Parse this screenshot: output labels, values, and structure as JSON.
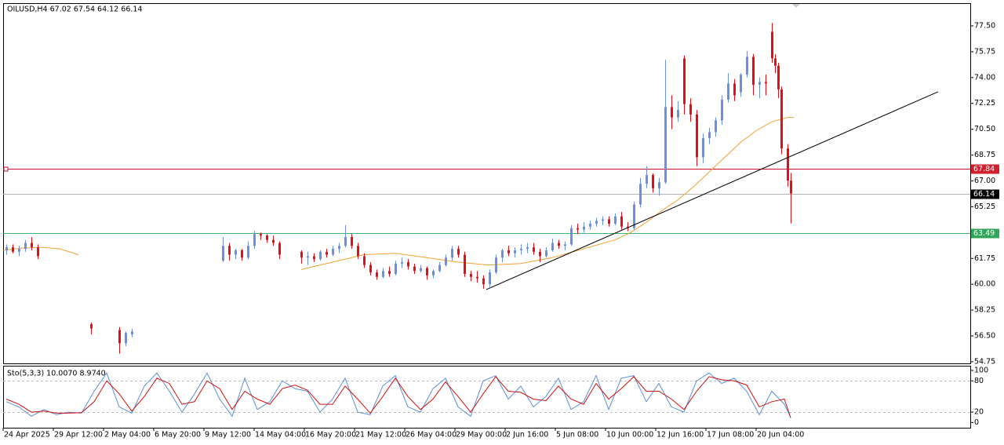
{
  "chart_data": {
    "type": "candlestick",
    "title": "OILUSD,H4  67.02 67.54 64.12 66.14",
    "up_color": "#6a8fdc",
    "down_color": "#e0101a",
    "xlim": [
      0,
      308.25
    ],
    "xticks": [
      {
        "value": 0,
        "label": "24 Apr 2025"
      },
      {
        "value": 16,
        "label": "29 Apr 12:00"
      },
      {
        "value": 32,
        "label": "2 May 04:00"
      },
      {
        "value": 48,
        "label": "6 May 20:00"
      },
      {
        "value": 64,
        "label": "9 May 12:00"
      },
      {
        "value": 80,
        "label": "14 May 04:00"
      },
      {
        "value": 96,
        "label": "16 May 20:00"
      },
      {
        "value": 112,
        "label": "21 May 12:00"
      },
      {
        "value": 128,
        "label": "26 May 04:00"
      },
      {
        "value": 144,
        "label": "29 May 00:00"
      },
      {
        "value": 160,
        "label": "2 Jun 16:00"
      },
      {
        "value": 176,
        "label": "5 Jun 08:00"
      },
      {
        "value": 192,
        "label": "10 Jun 00:00"
      },
      {
        "value": 208,
        "label": "12 Jun 16:00"
      },
      {
        "value": 224,
        "label": "17 Jun 08:00"
      },
      {
        "value": 240,
        "label": "20 Jun 04:00"
      }
    ],
    "ylim": [
      54.64,
      79.04
    ],
    "yticks": [
      54.75,
      {
        "value": 56.5,
        "label": "56.50"
      },
      58.25,
      {
        "value": 60,
        "label": "60.00"
      },
      61.75,
      {
        "value": 63.5,
        "label": "63.50"
      },
      65.25,
      {
        "value": 67,
        "label": "67.00"
      },
      68.75,
      {
        "value": 70.5,
        "label": "70.50"
      },
      72.25,
      {
        "value": 74,
        "label": "74.00"
      },
      75.75,
      {
        "value": 77.5,
        "label": "77.50"
      }
    ],
    "levels": [
      {
        "value": 67.84,
        "color": "#c8102e",
        "box_color": "#d0202e"
      },
      {
        "value": 66.14,
        "color": "#b4b4b4",
        "box_color": "#000000"
      },
      {
        "value": 63.49,
        "color": "#3cb371",
        "box_color": "#2fa65a"
      }
    ],
    "candles": [
      {
        "x": 1,
        "open": 62.3,
        "high": 62.7,
        "low": 62.0,
        "close": 62.5
      },
      {
        "x": 3,
        "open": 62.5,
        "high": 62.7,
        "low": 62.1,
        "close": 62.2
      },
      {
        "x": 5,
        "open": 62.2,
        "high": 62.6,
        "low": 61.9,
        "close": 62.4
      },
      {
        "x": 7,
        "open": 62.4,
        "high": 63.0,
        "low": 62.2,
        "close": 62.8
      },
      {
        "x": 9,
        "open": 62.8,
        "high": 63.2,
        "low": 62.3,
        "close": 62.5
      },
      {
        "x": 11,
        "open": 62.5,
        "high": 62.7,
        "low": 61.7,
        "close": 61.9
      },
      {
        "x": 28,
        "open": 57.3,
        "high": 57.4,
        "low": 56.6,
        "close": 57.0
      },
      {
        "x": 37,
        "open": 56.9,
        "high": 57.1,
        "low": 55.3,
        "close": 56.0
      },
      {
        "x": 39,
        "open": 56.0,
        "high": 56.8,
        "low": 55.8,
        "close": 56.7
      },
      {
        "x": 41,
        "open": 56.6,
        "high": 57.0,
        "low": 56.4,
        "close": 56.8
      },
      {
        "x": 70,
        "open": 61.6,
        "high": 63.2,
        "low": 61.5,
        "close": 62.6
      },
      {
        "x": 72,
        "open": 62.6,
        "high": 62.8,
        "low": 61.6,
        "close": 62.0
      },
      {
        "x": 74,
        "open": 62.0,
        "high": 62.4,
        "low": 61.7,
        "close": 62.3
      },
      {
        "x": 76,
        "open": 62.3,
        "high": 62.4,
        "low": 61.6,
        "close": 61.8
      },
      {
        "x": 78,
        "open": 61.8,
        "high": 62.9,
        "low": 61.7,
        "close": 62.6
      },
      {
        "x": 80,
        "open": 62.6,
        "high": 63.6,
        "low": 62.4,
        "close": 63.4
      },
      {
        "x": 82,
        "open": 63.4,
        "high": 63.5,
        "low": 63.0,
        "close": 63.3
      },
      {
        "x": 84,
        "open": 63.3,
        "high": 63.4,
        "low": 62.8,
        "close": 63.0
      },
      {
        "x": 86,
        "open": 63.0,
        "high": 63.3,
        "low": 62.6,
        "close": 62.8
      },
      {
        "x": 88,
        "open": 62.8,
        "high": 62.9,
        "low": 61.7,
        "close": 62.0
      },
      {
        "x": 95,
        "open": 62.2,
        "high": 62.3,
        "low": 61.4,
        "close": 61.8
      },
      {
        "x": 97,
        "open": 61.8,
        "high": 62.2,
        "low": 61.3,
        "close": 61.9
      },
      {
        "x": 99,
        "open": 61.9,
        "high": 62.1,
        "low": 61.5,
        "close": 61.7
      },
      {
        "x": 101,
        "open": 61.7,
        "high": 62.3,
        "low": 61.6,
        "close": 62.2
      },
      {
        "x": 103,
        "open": 62.2,
        "high": 62.4,
        "low": 61.8,
        "close": 62.0
      },
      {
        "x": 105,
        "open": 62.0,
        "high": 62.6,
        "low": 61.9,
        "close": 62.4
      },
      {
        "x": 107,
        "open": 62.4,
        "high": 62.8,
        "low": 62.1,
        "close": 62.6
      },
      {
        "x": 109,
        "open": 62.6,
        "high": 64.0,
        "low": 62.5,
        "close": 63.2
      },
      {
        "x": 111,
        "open": 63.2,
        "high": 63.4,
        "low": 62.4,
        "close": 62.6
      },
      {
        "x": 113,
        "open": 62.6,
        "high": 62.8,
        "low": 61.7,
        "close": 61.9
      },
      {
        "x": 115,
        "open": 61.9,
        "high": 62.1,
        "low": 61.1,
        "close": 61.3
      },
      {
        "x": 117,
        "open": 61.3,
        "high": 61.5,
        "low": 60.6,
        "close": 60.8
      },
      {
        "x": 119,
        "open": 60.8,
        "high": 61.0,
        "low": 60.3,
        "close": 60.5
      },
      {
        "x": 121,
        "open": 60.5,
        "high": 61.1,
        "low": 60.4,
        "close": 60.9
      },
      {
        "x": 123,
        "open": 60.9,
        "high": 61.2,
        "low": 60.5,
        "close": 60.7
      },
      {
        "x": 125,
        "open": 60.7,
        "high": 61.6,
        "low": 60.6,
        "close": 61.4
      },
      {
        "x": 127,
        "open": 61.4,
        "high": 61.8,
        "low": 61.1,
        "close": 61.5
      },
      {
        "x": 129,
        "open": 61.5,
        "high": 61.7,
        "low": 61.0,
        "close": 61.2
      },
      {
        "x": 131,
        "open": 61.2,
        "high": 61.4,
        "low": 60.7,
        "close": 60.9
      },
      {
        "x": 133,
        "open": 60.9,
        "high": 61.3,
        "low": 60.8,
        "close": 61.1
      },
      {
        "x": 135,
        "open": 61.1,
        "high": 61.2,
        "low": 60.3,
        "close": 60.6
      },
      {
        "x": 137,
        "open": 60.6,
        "high": 61.0,
        "low": 60.4,
        "close": 60.9
      },
      {
        "x": 139,
        "open": 60.9,
        "high": 61.5,
        "low": 60.8,
        "close": 61.3
      },
      {
        "x": 141,
        "open": 61.3,
        "high": 62.0,
        "low": 61.2,
        "close": 61.8
      },
      {
        "x": 143,
        "open": 61.8,
        "high": 62.6,
        "low": 61.6,
        "close": 62.4
      },
      {
        "x": 145,
        "open": 62.4,
        "high": 62.6,
        "low": 61.8,
        "close": 62.0
      },
      {
        "x": 147,
        "open": 62.0,
        "high": 62.2,
        "low": 60.5,
        "close": 60.7
      },
      {
        "x": 149,
        "open": 60.7,
        "high": 60.9,
        "low": 60.2,
        "close": 60.5
      },
      {
        "x": 151,
        "open": 60.5,
        "high": 60.9,
        "low": 60.1,
        "close": 60.4
      },
      {
        "x": 153,
        "open": 60.4,
        "high": 60.6,
        "low": 59.7,
        "close": 60.0
      },
      {
        "x": 155,
        "open": 60.0,
        "high": 61.0,
        "low": 59.8,
        "close": 60.8
      },
      {
        "x": 157,
        "open": 60.8,
        "high": 62.0,
        "low": 60.7,
        "close": 61.8
      },
      {
        "x": 159,
        "open": 61.8,
        "high": 62.4,
        "low": 61.5,
        "close": 62.3
      },
      {
        "x": 161,
        "open": 62.3,
        "high": 62.6,
        "low": 61.9,
        "close": 62.1
      },
      {
        "x": 163,
        "open": 62.1,
        "high": 62.5,
        "low": 61.8,
        "close": 62.3
      },
      {
        "x": 165,
        "open": 62.3,
        "high": 62.7,
        "low": 62.0,
        "close": 62.4
      },
      {
        "x": 167,
        "open": 62.4,
        "high": 62.8,
        "low": 62.1,
        "close": 62.5
      },
      {
        "x": 169,
        "open": 62.5,
        "high": 62.8,
        "low": 62.0,
        "close": 62.2
      },
      {
        "x": 171,
        "open": 62.2,
        "high": 62.4,
        "low": 61.5,
        "close": 61.9
      },
      {
        "x": 173,
        "open": 61.9,
        "high": 62.5,
        "low": 61.8,
        "close": 62.3
      },
      {
        "x": 175,
        "open": 62.3,
        "high": 63.1,
        "low": 62.2,
        "close": 62.8
      },
      {
        "x": 177,
        "open": 62.8,
        "high": 63.0,
        "low": 62.4,
        "close": 62.6
      },
      {
        "x": 179,
        "open": 62.6,
        "high": 62.9,
        "low": 62.3,
        "close": 62.7
      },
      {
        "x": 181,
        "open": 62.7,
        "high": 64.0,
        "low": 62.6,
        "close": 63.8
      },
      {
        "x": 183,
        "open": 63.8,
        "high": 64.1,
        "low": 63.4,
        "close": 63.7
      },
      {
        "x": 185,
        "open": 63.7,
        "high": 64.2,
        "low": 63.5,
        "close": 63.9
      },
      {
        "x": 187,
        "open": 63.9,
        "high": 64.3,
        "low": 63.7,
        "close": 64.1
      },
      {
        "x": 189,
        "open": 64.1,
        "high": 64.5,
        "low": 63.9,
        "close": 64.3
      },
      {
        "x": 191,
        "open": 64.3,
        "high": 64.6,
        "low": 64.0,
        "close": 64.4
      },
      {
        "x": 193,
        "open": 64.4,
        "high": 64.6,
        "low": 63.9,
        "close": 64.1
      },
      {
        "x": 195,
        "open": 64.1,
        "high": 64.8,
        "low": 64.0,
        "close": 64.6
      },
      {
        "x": 197,
        "open": 64.6,
        "high": 64.9,
        "low": 63.7,
        "close": 63.9
      },
      {
        "x": 199,
        "open": 63.9,
        "high": 64.2,
        "low": 63.6,
        "close": 63.8
      },
      {
        "x": 201,
        "open": 63.8,
        "high": 65.6,
        "low": 63.7,
        "close": 65.4
      },
      {
        "x": 203,
        "open": 65.4,
        "high": 67.2,
        "low": 65.2,
        "close": 66.8
      },
      {
        "x": 205,
        "open": 66.8,
        "high": 68.0,
        "low": 66.5,
        "close": 67.4
      },
      {
        "x": 207,
        "open": 67.4,
        "high": 67.5,
        "low": 66.2,
        "close": 66.5
      },
      {
        "x": 209,
        "open": 66.5,
        "high": 67.2,
        "low": 66.0,
        "close": 66.9
      },
      {
        "x": 211,
        "open": 66.9,
        "high": 75.2,
        "low": 66.8,
        "close": 72.0
      },
      {
        "x": 213,
        "open": 72.0,
        "high": 72.8,
        "low": 70.5,
        "close": 71.3
      },
      {
        "x": 215,
        "open": 71.3,
        "high": 72.4,
        "low": 71.0,
        "close": 71.8
      },
      {
        "x": 217,
        "open": 75.3,
        "high": 75.5,
        "low": 71.5,
        "close": 72.2
      },
      {
        "x": 219,
        "open": 72.2,
        "high": 72.6,
        "low": 71.0,
        "close": 71.5
      },
      {
        "x": 221,
        "open": 71.5,
        "high": 71.8,
        "low": 68.0,
        "close": 68.6
      },
      {
        "x": 223,
        "open": 68.6,
        "high": 70.2,
        "low": 68.2,
        "close": 69.9
      },
      {
        "x": 225,
        "open": 69.9,
        "high": 70.6,
        "low": 69.5,
        "close": 70.3
      },
      {
        "x": 227,
        "open": 70.3,
        "high": 71.3,
        "low": 70.0,
        "close": 71.1
      },
      {
        "x": 229,
        "open": 71.1,
        "high": 72.8,
        "low": 70.8,
        "close": 72.5
      },
      {
        "x": 231,
        "open": 72.5,
        "high": 74.3,
        "low": 72.3,
        "close": 73.6
      },
      {
        "x": 233,
        "open": 73.6,
        "high": 73.9,
        "low": 72.4,
        "close": 72.8
      },
      {
        "x": 235,
        "open": 73.0,
        "high": 74.3,
        "low": 72.7,
        "close": 74.2
      },
      {
        "x": 237,
        "open": 74.2,
        "high": 75.8,
        "low": 74.0,
        "close": 75.4
      },
      {
        "x": 239,
        "open": 75.4,
        "high": 75.6,
        "low": 72.8,
        "close": 73.5
      },
      {
        "x": 241,
        "open": 73.5,
        "high": 74.0,
        "low": 72.6,
        "close": 73.7
      },
      {
        "x": 243,
        "open": 73.7,
        "high": 74.2,
        "low": 72.8,
        "close": 73.6
      },
      {
        "x": 245,
        "open": 77.1,
        "high": 77.7,
        "low": 75.0,
        "close": 75.3
      },
      {
        "x": 246,
        "open": 75.3,
        "high": 75.6,
        "low": 74.3,
        "close": 74.8
      },
      {
        "x": 247,
        "open": 74.8,
        "high": 75.0,
        "low": 72.6,
        "close": 73.2
      },
      {
        "x": 248,
        "open": 73.2,
        "high": 73.4,
        "low": 68.8,
        "close": 69.2
      },
      {
        "x": 250,
        "open": 69.2,
        "high": 69.5,
        "low": 66.6,
        "close": 67.02
      },
      {
        "x": 251,
        "open": 67.02,
        "high": 67.54,
        "low": 64.12,
        "close": 66.14
      }
    ],
    "ma": {
      "color": "#f0a030",
      "x": [
        0,
        6,
        12,
        18,
        24,
        60,
        95,
        105,
        115,
        125,
        135,
        145,
        155,
        165,
        175,
        185,
        195,
        200,
        205,
        210,
        215,
        220,
        225,
        230,
        235,
        240,
        245,
        250,
        252
      ],
      "values": [
        62.3,
        62.45,
        62.5,
        62.4,
        62.0,
        null,
        61.0,
        61.5,
        62.0,
        62.1,
        61.8,
        61.5,
        61.3,
        61.4,
        61.8,
        62.4,
        63.0,
        63.5,
        64.2,
        65.0,
        65.7,
        66.6,
        67.6,
        68.6,
        69.6,
        70.4,
        71.0,
        71.3,
        71.3
      ]
    },
    "trendline": {
      "color": "#000000",
      "x": [
        154,
        298
      ],
      "values": [
        59.64,
        73.04
      ]
    },
    "stochastic": {
      "title": "Sto(5,3,3) 10.0070 8.9740",
      "ylim": [
        -10,
        109
      ],
      "yticks": [
        0,
        20,
        80,
        100
      ],
      "levels": [
        20,
        80
      ],
      "x": [
        1,
        5,
        9,
        13,
        17,
        21,
        25,
        29,
        33,
        37,
        41,
        45,
        49,
        53,
        57,
        61,
        65,
        69,
        73,
        77,
        81,
        85,
        89,
        93,
        97,
        101,
        105,
        109,
        113,
        117,
        121,
        125,
        129,
        133,
        137,
        141,
        145,
        149,
        153,
        157,
        161,
        165,
        169,
        173,
        177,
        181,
        185,
        189,
        193,
        197,
        201,
        205,
        209,
        213,
        217,
        221,
        225,
        229,
        233,
        237,
        241,
        245,
        249,
        251
      ],
      "series": [
        {
          "color": "#5b8fd6",
          "values": [
            40,
            30,
            12,
            25,
            15,
            20,
            18,
            60,
            95,
            30,
            18,
            70,
            95,
            60,
            20,
            55,
            95,
            45,
            12,
            85,
            25,
            40,
            80,
            65,
            60,
            20,
            45,
            85,
            20,
            15,
            70,
            90,
            30,
            20,
            65,
            85,
            30,
            12,
            80,
            90,
            45,
            70,
            30,
            50,
            85,
            25,
            40,
            90,
            25,
            85,
            90,
            40,
            75,
            30,
            20,
            80,
            95,
            75,
            85,
            60,
            15,
            60,
            35,
            10.007
          ]
        },
        {
          "color": "#d01010",
          "values": [
            45,
            35,
            20,
            22,
            18,
            18,
            19,
            40,
            80,
            55,
            22,
            50,
            85,
            75,
            35,
            40,
            80,
            65,
            25,
            60,
            45,
            35,
            65,
            72,
            62,
            35,
            35,
            70,
            45,
            18,
            50,
            85,
            50,
            25,
            45,
            78,
            50,
            20,
            55,
            88,
            60,
            58,
            45,
            42,
            70,
            45,
            35,
            75,
            45,
            65,
            88,
            60,
            60,
            45,
            25,
            60,
            88,
            82,
            80,
            72,
            30,
            40,
            45,
            8.974
          ]
        }
      ]
    }
  }
}
